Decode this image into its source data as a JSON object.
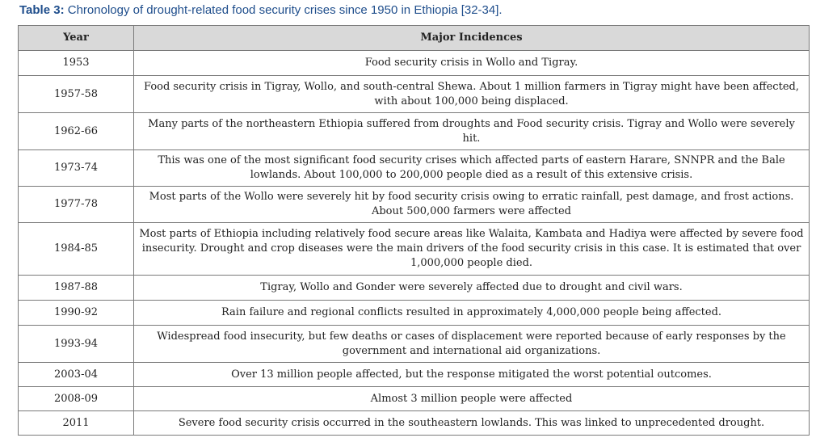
{
  "caption": {
    "label": "Table 3:",
    "text": " Chronology of drought-related food security crises since 1950 in Ethiopia [32-34]."
  },
  "table": {
    "headers": [
      "Year",
      "Major Incidences"
    ],
    "rows": [
      {
        "year": "1953",
        "incidence": "Food security crisis in Wollo and Tigray."
      },
      {
        "year": "1957-58",
        "incidence": "Food security crisis in Tigray, Wollo, and south-central Shewa. About 1 million farmers in Tigray might have been affected, with about 100,000 being displaced."
      },
      {
        "year": "1962-66",
        "incidence": "Many parts of the northeastern Ethiopia suffered from droughts and Food security crisis. Tigray and Wollo were severely hit."
      },
      {
        "year": "1973-74",
        "incidence": "This was one of the most significant food security crises which affected parts of eastern Harare, SNNPR and the Bale lowlands. About 100,000 to 200,000 people died as a result of this extensive crisis."
      },
      {
        "year": "1977-78",
        "incidence": "Most parts of the Wollo were severely hit by food security crisis owing to erratic rainfall, pest damage, and frost actions. About 500,000 farmers were affected"
      },
      {
        "year": "1984-85",
        "incidence": "Most parts of Ethiopia including relatively food secure areas like Walaita, Kambata and Hadiya were affected by severe food insecurity. Drought and crop diseases were the main drivers of the food security crisis in this case. It is estimated that over 1,000,000 people died."
      },
      {
        "year": "1987-88",
        "incidence": "Tigray, Wollo and Gonder were severely affected due to drought and civil wars."
      },
      {
        "year": "1990-92",
        "incidence": "Rain failure and regional conflicts resulted in approximately 4,000,000 people being affected."
      },
      {
        "year": "1993-94",
        "incidence": "Widespread food insecurity, but few deaths or cases of displacement were reported because of early responses by the government and international aid organizations."
      },
      {
        "year": "2003-04",
        "incidence": "Over 13 million people affected, but the response mitigated the worst potential outcomes."
      },
      {
        "year": "2008-09",
        "incidence": "Almost 3 million people were affected"
      },
      {
        "year": "2011",
        "incidence": "Severe food security crisis occurred in the southeastern lowlands. This was linked to unprecedented drought."
      }
    ]
  }
}
